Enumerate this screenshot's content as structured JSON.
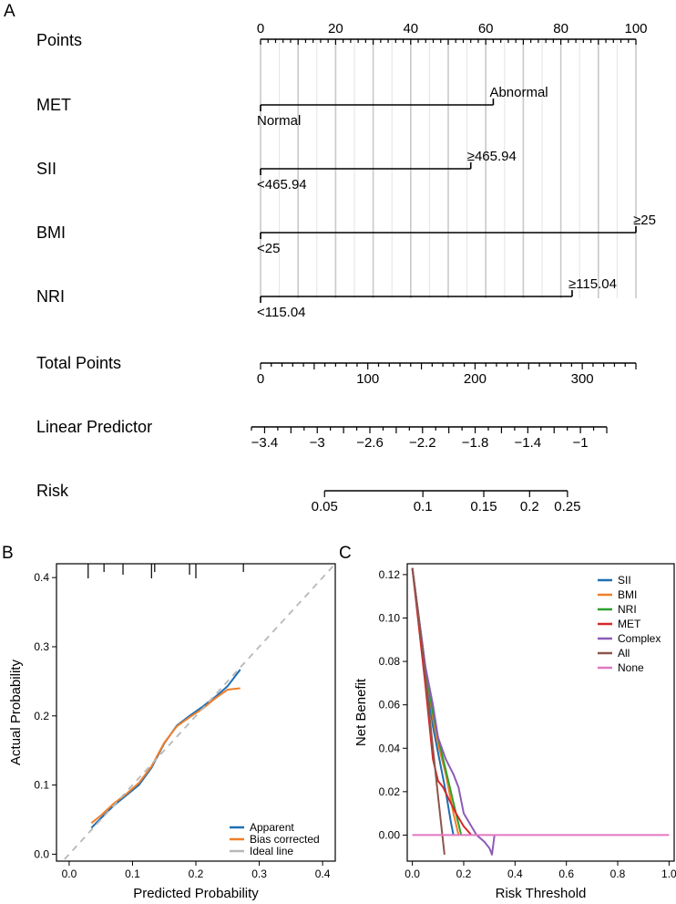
{
  "panels": {
    "a": "A",
    "b": "B",
    "c": "C"
  },
  "chart_data": [
    {
      "type": "nomogram",
      "points_scale": {
        "ticks": [
          0,
          20,
          40,
          60,
          80,
          100
        ],
        "range": [
          0,
          100
        ]
      },
      "rows": [
        {
          "label": "Points"
        },
        {
          "label": "MET",
          "levels": [
            {
              "label": "Normal",
              "points": 0
            },
            {
              "label": "Abnormal",
              "points": 62
            }
          ]
        },
        {
          "label": "SII",
          "levels": [
            {
              "label": "<465.94",
              "points": 0
            },
            {
              "label": "≥465.94",
              "points": 56
            }
          ]
        },
        {
          "label": "BMI",
          "levels": [
            {
              "label": "<25",
              "points": 0
            },
            {
              "label": "≥25",
              "points": 100
            }
          ]
        },
        {
          "label": "NRI",
          "levels": [
            {
              "label": "<115.04",
              "points": 0
            },
            {
              "label": "≥115.04",
              "points": 83
            }
          ]
        }
      ],
      "total_points": {
        "label": "Total Points",
        "ticks": [
          0,
          100,
          200,
          300
        ],
        "range": [
          0,
          350
        ]
      },
      "linear_predictor": {
        "label": "Linear Predictor",
        "ticks": [
          "−3.4",
          "−3",
          "−2.6",
          "−2.2",
          "−1.8",
          "−1.4",
          "−1"
        ],
        "tick_values": [
          -3.4,
          -3.0,
          -2.6,
          -2.2,
          -1.8,
          -1.4,
          -1.0
        ],
        "range": [
          -3.5,
          -0.8
        ]
      },
      "risk": {
        "label": "Risk",
        "ticks": [
          "0.05",
          "0.1",
          "0.15",
          "0.2",
          "0.25"
        ],
        "tick_values": [
          0.05,
          0.1,
          0.15,
          0.2,
          0.25
        ]
      }
    },
    {
      "type": "line",
      "xlabel": "Predicted Probability",
      "ylabel": "Actual Probability",
      "xlim": [
        -0.02,
        0.42
      ],
      "ylim": [
        -0.01,
        0.42
      ],
      "x_ticks": [
        "0.0",
        "0.1",
        "0.2",
        "0.3",
        "0.4"
      ],
      "y_ticks": [
        "0.0",
        "0.1",
        "0.2",
        "0.3",
        "0.4"
      ],
      "rug": [
        0.03,
        0.055,
        0.085,
        0.13,
        0.135,
        0.19,
        0.2,
        0.275
      ],
      "legend_position": "bottom-right",
      "series": [
        {
          "name": "Apparent",
          "color": "#1f6fb5",
          "x": [
            0.035,
            0.05,
            0.07,
            0.09,
            0.11,
            0.13,
            0.15,
            0.17,
            0.19,
            0.21,
            0.23,
            0.25,
            0.27
          ],
          "y": [
            0.038,
            0.052,
            0.07,
            0.085,
            0.1,
            0.125,
            0.16,
            0.186,
            0.2,
            0.213,
            0.227,
            0.243,
            0.267
          ]
        },
        {
          "name": "Bias corrected",
          "color": "#f07f2a",
          "x": [
            0.035,
            0.05,
            0.07,
            0.09,
            0.11,
            0.13,
            0.15,
            0.17,
            0.19,
            0.21,
            0.23,
            0.25,
            0.27
          ],
          "y": [
            0.045,
            0.056,
            0.073,
            0.087,
            0.103,
            0.127,
            0.161,
            0.185,
            0.198,
            0.21,
            0.225,
            0.238,
            0.24
          ]
        },
        {
          "name": "Ideal line",
          "color": "#b8b8b8",
          "x": [
            -0.02,
            0.42
          ],
          "y": [
            -0.02,
            0.42
          ]
        }
      ]
    },
    {
      "type": "line",
      "xlabel": "Risk Threshold",
      "ylabel": "Net Benefit",
      "xlim": [
        -0.02,
        1.02
      ],
      "ylim": [
        -0.012,
        0.125
      ],
      "x_ticks": [
        "0.0",
        "0.2",
        "0.4",
        "0.6",
        "0.8",
        "1.0"
      ],
      "y_ticks": [
        "0.00",
        "0.02",
        "0.04",
        "0.06",
        "0.08",
        "0.10",
        "0.12"
      ],
      "legend_position": "top-right",
      "series": [
        {
          "name": "SII",
          "color": "#1f6fb5",
          "x": [
            0.0,
            0.05,
            0.08,
            0.1,
            0.13,
            0.15,
            0.16
          ],
          "y": [
            0.123,
            0.075,
            0.05,
            0.038,
            0.02,
            0.006,
            0.0
          ]
        },
        {
          "name": "BMI",
          "color": "#f07f2a",
          "x": [
            0.0,
            0.05,
            0.08,
            0.1,
            0.13,
            0.16,
            0.18
          ],
          "y": [
            0.123,
            0.078,
            0.054,
            0.042,
            0.028,
            0.01,
            0.0
          ]
        },
        {
          "name": "NRI",
          "color": "#2ca02c",
          "x": [
            0.0,
            0.05,
            0.08,
            0.1,
            0.13,
            0.16,
            0.19
          ],
          "y": [
            0.123,
            0.078,
            0.056,
            0.045,
            0.03,
            0.015,
            0.0
          ]
        },
        {
          "name": "MET",
          "color": "#d62728",
          "x": [
            0.0,
            0.05,
            0.08,
            0.1,
            0.12,
            0.14,
            0.17,
            0.2,
            0.23
          ],
          "y": [
            0.123,
            0.07,
            0.035,
            0.025,
            0.022,
            0.017,
            0.01,
            0.004,
            0.0
          ]
        },
        {
          "name": "Complex",
          "color": "#8b5cb8",
          "x": [
            0.0,
            0.05,
            0.08,
            0.1,
            0.13,
            0.16,
            0.18,
            0.2,
            0.25,
            0.28,
            0.3,
            0.31,
            0.32
          ],
          "y": [
            0.123,
            0.078,
            0.06,
            0.045,
            0.035,
            0.028,
            0.022,
            0.01,
            0.0,
            -0.003,
            -0.006,
            -0.009,
            0.0
          ]
        },
        {
          "name": "All",
          "color": "#8c564b",
          "x": [
            0.0,
            0.04,
            0.08,
            0.1,
            0.125
          ],
          "y": [
            0.123,
            0.085,
            0.04,
            0.018,
            -0.009
          ]
        },
        {
          "name": "None",
          "color": "#e377c2",
          "x": [
            0.0,
            1.0
          ],
          "y": [
            0.0,
            0.0
          ]
        }
      ]
    }
  ]
}
